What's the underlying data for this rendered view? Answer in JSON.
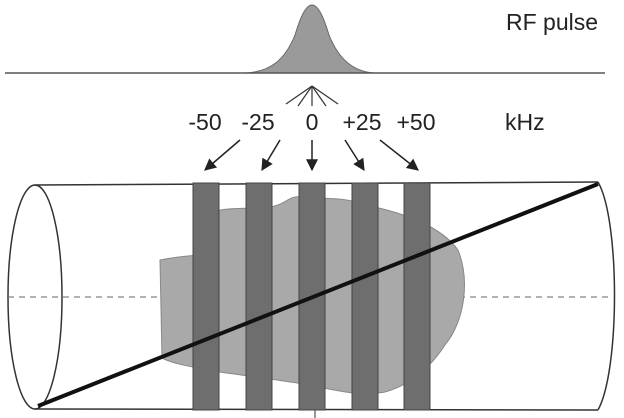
{
  "labels": {
    "pulse": "RF pulse",
    "unit": "kHz"
  },
  "frequencies": [
    "-50",
    "-25",
    "0",
    "+25",
    "+50"
  ]
}
